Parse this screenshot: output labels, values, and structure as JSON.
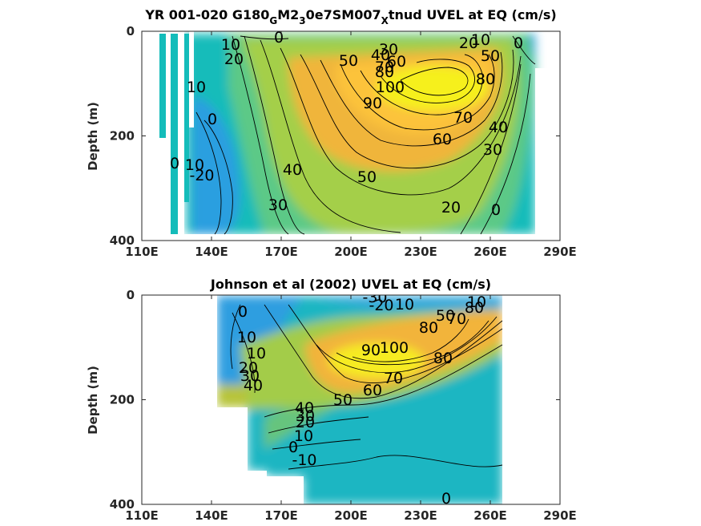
{
  "chart_data": [
    {
      "type": "heatmap",
      "title_parts": [
        "YR 001-020 G180",
        "G",
        "M2",
        "3",
        "0e7SM007",
        "X",
        "tnud UVEL at EQ (cm/s)"
      ],
      "ylabel": "Depth (m)",
      "xticks": [
        "110E",
        "140E",
        "170E",
        "200E",
        "230E",
        "260E",
        "290E"
      ],
      "yticks": [
        "0",
        "200",
        "400"
      ],
      "xlim": [
        110,
        290
      ],
      "ylim": [
        0,
        400
      ],
      "core": {
        "lon": 235,
        "depth": 100,
        "value": 105
      },
      "contour_labels": [
        "10",
        "0",
        "20",
        "30",
        "40",
        "50",
        "60",
        "70",
        "80",
        "20",
        "10",
        "50",
        "0",
        "80",
        "100",
        "90",
        "10",
        "0",
        "40",
        "70",
        "60",
        "30",
        "0",
        "-20",
        "10",
        "40",
        "50",
        "30",
        "20",
        "0"
      ]
    },
    {
      "type": "heatmap",
      "title": "Johnson et al (2002) UVEL at EQ (cm/s)",
      "ylabel": "Depth (m)",
      "xticks": [
        "110E",
        "140E",
        "170E",
        "200E",
        "230E",
        "260E",
        "290E"
      ],
      "yticks": [
        "0",
        "200",
        "400"
      ],
      "xlim": [
        110,
        290
      ],
      "ylim": [
        0,
        400
      ],
      "core": {
        "lon": 225,
        "depth": 110,
        "value": 100
      },
      "contour_labels": [
        "-30",
        "-20",
        "10",
        "50",
        "80",
        "10",
        "0",
        "70",
        "10",
        "80",
        "100",
        "90",
        "80",
        "10",
        "20",
        "30",
        "40",
        "70",
        "60",
        "50",
        "40",
        "30",
        "20",
        "10",
        "0",
        "-10",
        "0"
      ]
    }
  ]
}
